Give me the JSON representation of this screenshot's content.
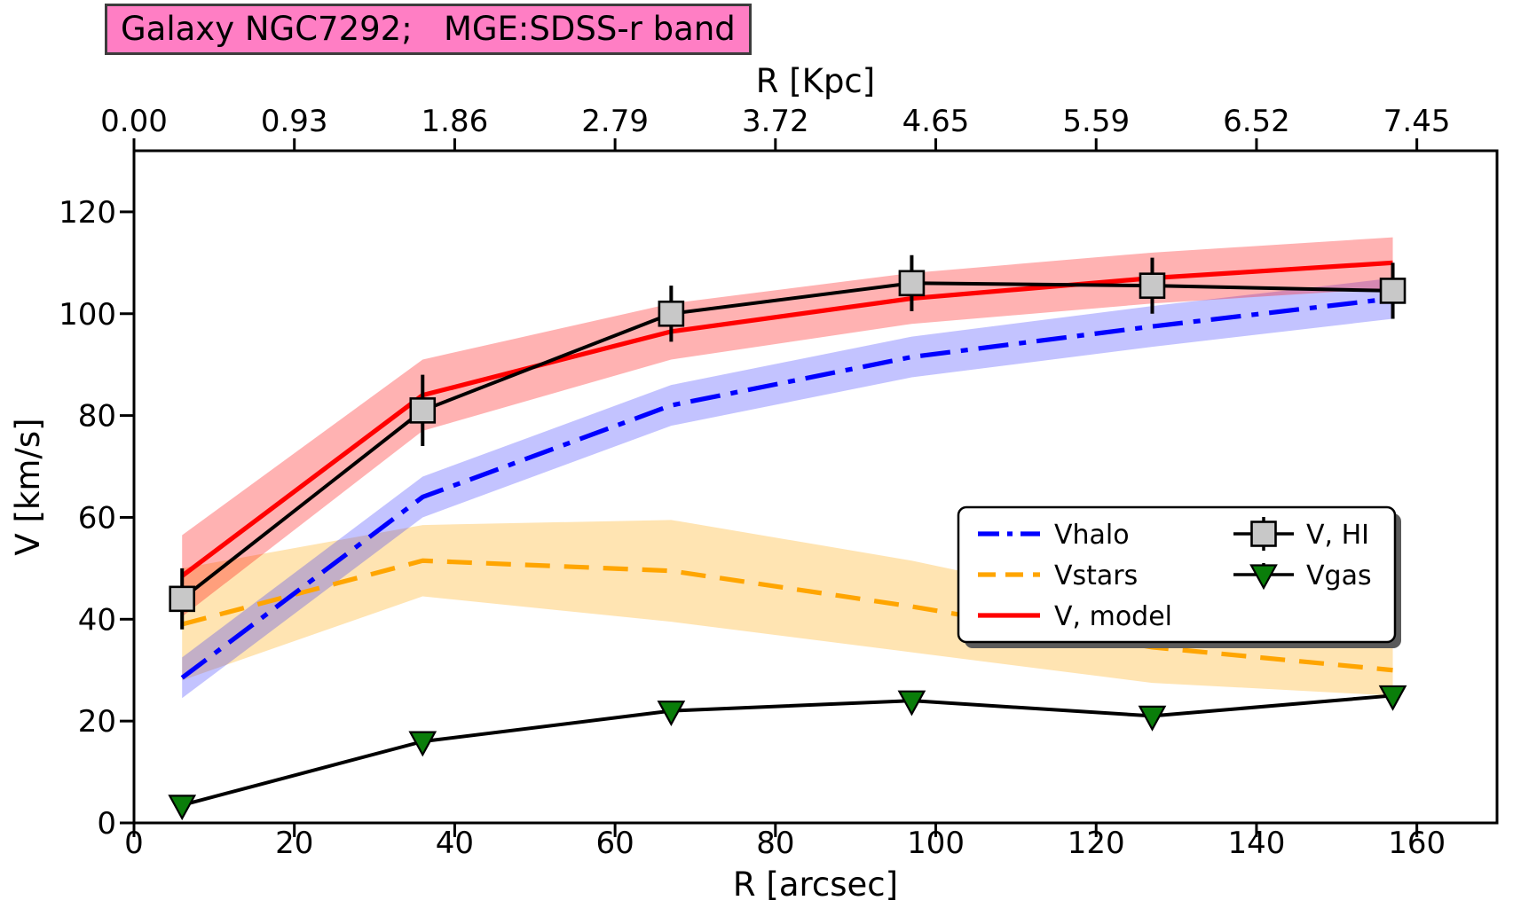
{
  "chart_data": {
    "type": "line",
    "title": "Galaxy NGC7292;   MGE:SDSS-r band",
    "title_bg_color": "#ff7ec4",
    "xlabel": "R [arcsec]",
    "top_xlabel": "R [Kpc]",
    "ylabel": "V [km/s]",
    "xlim": [
      0,
      170
    ],
    "ylim": [
      0,
      132
    ],
    "x_ticks": [
      0,
      20,
      40,
      60,
      80,
      100,
      120,
      140,
      160
    ],
    "y_ticks": [
      0,
      20,
      40,
      60,
      80,
      100,
      120
    ],
    "top_ticks": {
      "positions_arcsec": [
        0,
        20,
        40,
        60,
        80,
        100,
        120,
        140,
        160
      ],
      "labels": [
        "0.00",
        "0.93",
        "1.86",
        "2.79",
        "3.72",
        "4.65",
        "5.59",
        "6.52",
        "7.45"
      ]
    },
    "x": [
      6,
      36,
      67,
      97,
      127,
      157
    ],
    "series": [
      {
        "name": "Vstars",
        "color": "#ffa500",
        "style": "dashed",
        "band_rgba": "rgba(255,165,0,0.30)",
        "values": [
          39,
          51.5,
          49.5,
          42.5,
          34.5,
          30
        ],
        "band": [
          11,
          7,
          10,
          9,
          7,
          5
        ]
      },
      {
        "name": "Vhalo",
        "color": "#0000ff",
        "style": "dashdot",
        "band_rgba": "rgba(40,40,255,0.28)",
        "values": [
          28.5,
          64,
          82,
          91.5,
          97.5,
          103
        ],
        "band": [
          4,
          4,
          4,
          4,
          4,
          4
        ]
      },
      {
        "name": "V, model",
        "color": "#ff0000",
        "style": "solid",
        "band_rgba": "rgba(255,0,0,0.30)",
        "values": [
          48.5,
          84,
          96.5,
          103,
          107,
          110
        ],
        "band": [
          8,
          7,
          5.5,
          5,
          5,
          5
        ]
      },
      {
        "name": "V, HI",
        "color": "#000000",
        "marker": "square",
        "marker_fill": "#c8c8c8",
        "values": [
          44,
          81,
          100,
          106,
          105.5,
          104.5
        ],
        "yerr": [
          6,
          7,
          5.5,
          5.5,
          5.5,
          5.5
        ]
      },
      {
        "name": "Vgas",
        "color": "#000000",
        "marker": "triangle-down",
        "marker_fill": "#0a7d0a",
        "values": [
          3.5,
          16,
          22,
          24,
          21,
          25
        ]
      }
    ],
    "legend": {
      "position": "center-right",
      "columns": [
        [
          "Vhalo",
          "Vstars",
          "V, model"
        ],
        [
          "V, HI",
          "Vgas"
        ]
      ]
    }
  }
}
